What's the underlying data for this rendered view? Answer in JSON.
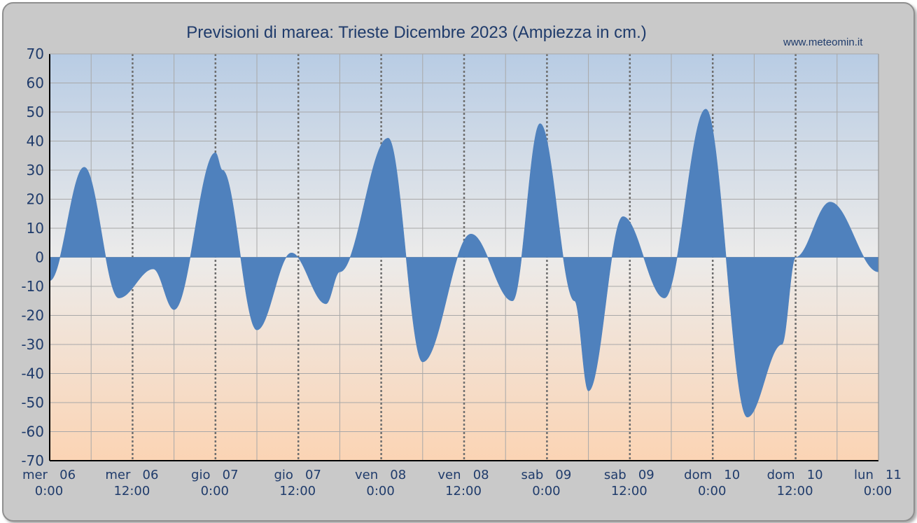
{
  "page": {
    "title": "Previsioni di marea: Trieste Dicembre 2023 (Ampiezza in cm.)",
    "site": "www.meteomin.it"
  },
  "colors": {
    "area": "#4f81bd",
    "bg_top": "#b8cce4",
    "bg_mid": "#ecebea",
    "bg_bottom": "#fbd4b4",
    "text": "#1f3b6b"
  },
  "chart_data": {
    "type": "area",
    "title": "Previsioni di marea: Trieste Dicembre 2023 (Ampiezza in cm.)",
    "xlabel": "",
    "ylabel": "",
    "ylim": [
      -70,
      70
    ],
    "yticks": [
      70,
      60,
      50,
      40,
      30,
      20,
      10,
      0,
      -10,
      -20,
      -30,
      -40,
      -50,
      -60,
      -70
    ],
    "xlim_hours": [
      0,
      120
    ],
    "grid": true,
    "x_tick_labels": [
      {
        "day": "mer   06",
        "time": "0:00"
      },
      {
        "day": "mer   06",
        "time": "12:00"
      },
      {
        "day": "gio   07",
        "time": "0:00"
      },
      {
        "day": "gio   07",
        "time": "12:00"
      },
      {
        "day": "ven   08",
        "time": "0:00"
      },
      {
        "day": "ven   08",
        "time": "12:00"
      },
      {
        "day": "sab   09",
        "time": "0:00"
      },
      {
        "day": "sab   09",
        "time": "12:00"
      },
      {
        "day": "dom   10",
        "time": "0:00"
      },
      {
        "day": "dom   10",
        "time": "12:00"
      },
      {
        "day": "lun   11",
        "time": "0:00"
      }
    ],
    "series": [
      {
        "x_hours": [
          0,
          5,
          10,
          15,
          18,
          24,
          25,
          30,
          35,
          40,
          42,
          49,
          54,
          61,
          67,
          71,
          76,
          78,
          83,
          89,
          95,
          101,
          106,
          108,
          113,
          120
        ],
        "values": [
          -8,
          31,
          -14,
          -4,
          -18,
          36,
          30,
          -25,
          1.5,
          -16,
          -5,
          41,
          -36,
          8,
          -15,
          46,
          -15,
          -46,
          14,
          -14,
          51,
          -55,
          -30,
          0,
          19,
          -5
        ]
      }
    ]
  }
}
